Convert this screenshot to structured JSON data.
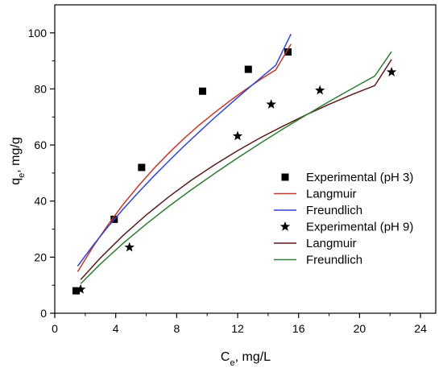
{
  "chart_data": {
    "type": "scatter",
    "title": "",
    "xlabel_main": "C",
    "xlabel_sub": "e",
    "xlabel_rest": ", mg/L",
    "ylabel_main": "q",
    "ylabel_sub": "e",
    "ylabel_rest": ", mg/g",
    "xlim": [
      0,
      25
    ],
    "ylim": [
      0,
      110
    ],
    "xticks": [
      0,
      4,
      8,
      12,
      16,
      20,
      24
    ],
    "yticks": [
      0,
      20,
      40,
      60,
      80,
      100
    ],
    "grid": false,
    "legend_position": "right",
    "series": [
      {
        "name": "Experimental (pH 3)",
        "kind": "scatter",
        "marker": "square",
        "color": "#000000",
        "x": [
          1.4,
          3.9,
          5.7,
          9.7,
          12.7,
          15.3
        ],
        "y": [
          8.0,
          33.5,
          52.0,
          79.2,
          87.0,
          93.2
        ]
      },
      {
        "name": "Langmuir",
        "kind": "line",
        "color": "#c0392b",
        "x": [
          1.5,
          2.5,
          3.5,
          4.5,
          5.5,
          6.5,
          7.5,
          8.5,
          9.5,
          10.5,
          11.5,
          12.5,
          13.5,
          14.5,
          15.5
        ],
        "y": [
          14.8,
          23.6,
          31.6,
          38.9,
          45.5,
          51.6,
          57.2,
          62.4,
          67.2,
          71.6,
          75.8,
          79.7,
          83.4,
          86.8,
          96.0
        ]
      },
      {
        "name": "Freundlich",
        "kind": "line",
        "color": "#3344cc",
        "x": [
          1.5,
          2.5,
          3.5,
          4.5,
          5.5,
          6.5,
          7.5,
          8.5,
          9.5,
          10.5,
          11.5,
          12.5,
          13.5,
          14.5,
          15.5
        ],
        "y": [
          16.8,
          24.1,
          30.9,
          37.2,
          43.2,
          48.9,
          54.4,
          59.7,
          64.8,
          69.8,
          74.6,
          79.3,
          83.9,
          88.4,
          99.6
        ]
      },
      {
        "name": "Experimental (pH 9)",
        "kind": "scatter",
        "marker": "star",
        "color": "#000000",
        "x": [
          1.7,
          4.9,
          12.0,
          14.2,
          17.4,
          22.1
        ],
        "y": [
          8.5,
          23.5,
          63.2,
          74.5,
          79.5,
          86.0
        ]
      },
      {
        "name": "Langmuir",
        "kind": "line",
        "color": "#5a1a1a",
        "x": [
          1.7,
          3.0,
          4.5,
          6.0,
          7.5,
          9.0,
          10.5,
          12.0,
          13.5,
          15.0,
          16.5,
          18.0,
          19.5,
          21.0,
          22.1
        ],
        "y": [
          12.0,
          19.8,
          27.8,
          35.0,
          41.6,
          47.6,
          53.0,
          58.0,
          62.6,
          66.8,
          70.8,
          74.5,
          78.0,
          81.2,
          90.5
        ]
      },
      {
        "name": "Freundlich",
        "kind": "line",
        "color": "#2e7d32",
        "x": [
          1.7,
          3.0,
          4.5,
          6.0,
          7.5,
          9.0,
          10.5,
          12.0,
          13.5,
          15.0,
          16.5,
          18.0,
          19.5,
          21.0,
          22.1
        ],
        "y": [
          10.5,
          17.6,
          25.0,
          31.8,
          38.2,
          44.2,
          49.9,
          55.4,
          60.7,
          65.8,
          70.7,
          75.5,
          80.1,
          84.6,
          93.3
        ]
      }
    ]
  }
}
